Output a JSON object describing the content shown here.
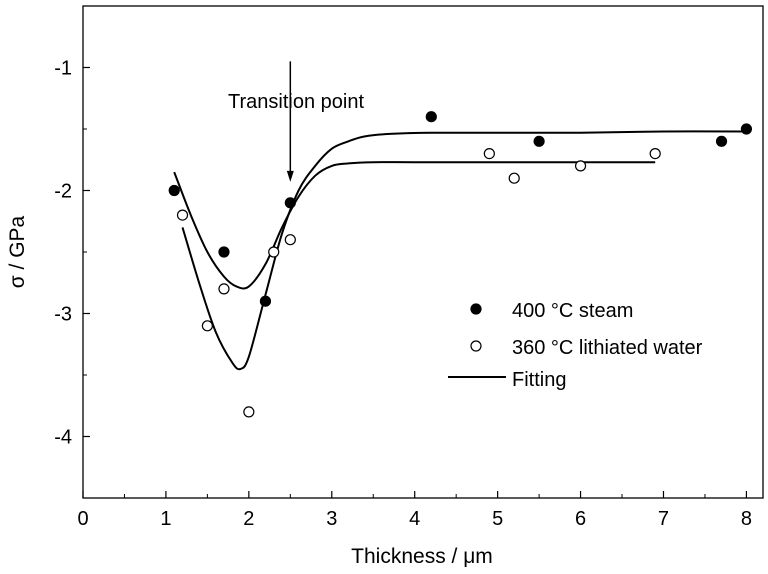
{
  "chart_data": {
    "type": "scatter",
    "xlabel": "Thickness / μm",
    "ylabel": "σ / GPa",
    "xlim": [
      0,
      8.2
    ],
    "ylim": [
      -4.5,
      -0.5
    ],
    "xticks": [
      0,
      1,
      2,
      3,
      4,
      5,
      6,
      7,
      8
    ],
    "yticks": [
      -4,
      -3,
      -2,
      -1
    ],
    "grid": false,
    "legend_position": "right-center",
    "series": [
      {
        "name": "400 °C steam",
        "marker": "filled-circle",
        "points": [
          [
            1.1,
            -2.0
          ],
          [
            1.7,
            -2.5
          ],
          [
            2.2,
            -2.9
          ],
          [
            2.5,
            -2.1
          ],
          [
            4.2,
            -1.4
          ],
          [
            5.5,
            -1.6
          ],
          [
            7.7,
            -1.6
          ],
          [
            8.0,
            -1.5
          ]
        ]
      },
      {
        "name": "360 °C lithiated water",
        "marker": "open-circle",
        "points": [
          [
            1.2,
            -2.2
          ],
          [
            1.5,
            -3.1
          ],
          [
            1.7,
            -2.8
          ],
          [
            2.0,
            -3.8
          ],
          [
            2.3,
            -2.5
          ],
          [
            2.5,
            -2.4
          ],
          [
            4.9,
            -1.7
          ],
          [
            5.2,
            -1.9
          ],
          [
            6.0,
            -1.8
          ],
          [
            6.9,
            -1.7
          ]
        ]
      }
    ],
    "fits": [
      {
        "label": "Fitting",
        "points": [
          [
            1.1,
            -1.85
          ],
          [
            1.3,
            -2.2
          ],
          [
            1.5,
            -2.5
          ],
          [
            1.7,
            -2.7
          ],
          [
            1.85,
            -2.78
          ],
          [
            2.0,
            -2.78
          ],
          [
            2.2,
            -2.6
          ],
          [
            2.4,
            -2.3
          ],
          [
            2.6,
            -2.05
          ],
          [
            2.8,
            -1.88
          ],
          [
            3.0,
            -1.8
          ],
          [
            3.2,
            -1.78
          ],
          [
            3.5,
            -1.77
          ],
          [
            4.0,
            -1.77
          ],
          [
            5.0,
            -1.77
          ],
          [
            6.0,
            -1.77
          ],
          [
            6.9,
            -1.77
          ]
        ]
      },
      {
        "label": "",
        "points": [
          [
            1.2,
            -2.3
          ],
          [
            1.4,
            -2.75
          ],
          [
            1.6,
            -3.15
          ],
          [
            1.8,
            -3.4
          ],
          [
            1.9,
            -3.45
          ],
          [
            2.0,
            -3.35
          ],
          [
            2.2,
            -2.85
          ],
          [
            2.4,
            -2.35
          ],
          [
            2.6,
            -2.0
          ],
          [
            2.8,
            -1.8
          ],
          [
            3.0,
            -1.66
          ],
          [
            3.2,
            -1.6
          ],
          [
            3.4,
            -1.56
          ],
          [
            3.7,
            -1.54
          ],
          [
            4.2,
            -1.53
          ],
          [
            5.0,
            -1.53
          ],
          [
            6.0,
            -1.53
          ],
          [
            7.0,
            -1.52
          ],
          [
            8.0,
            -1.52
          ]
        ]
      }
    ],
    "legend": {
      "items": [
        {
          "label": "400 °C steam",
          "marker": "filled-circle"
        },
        {
          "label": "360 °C lithiated water",
          "marker": "open-circle"
        },
        {
          "label": "Fitting",
          "marker": "line"
        }
      ]
    },
    "annotations": [
      {
        "text": "Transition point",
        "arrow_x": 2.5,
        "arrow_from_y": -0.95,
        "arrow_to_y": -1.93
      }
    ]
  }
}
